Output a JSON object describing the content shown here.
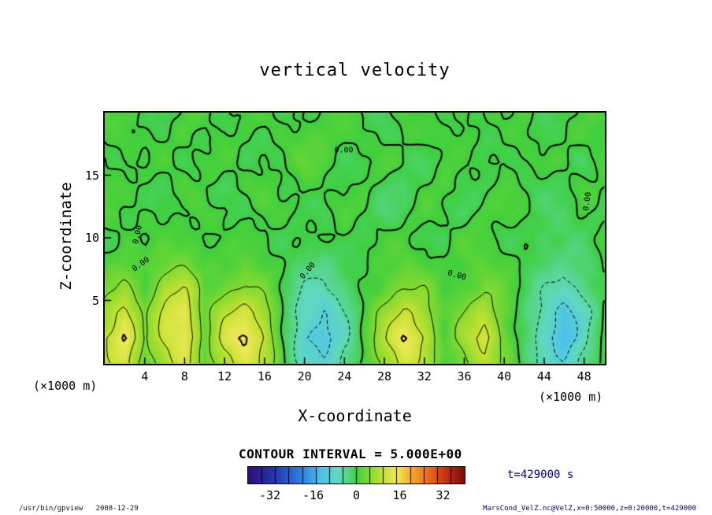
{
  "title": "vertical velocity",
  "axes": {
    "x_label": "X-coordinate",
    "z_label": "Z-coordinate",
    "x_unit_label": "(×1000 m)",
    "z_unit_label": "(×1000 m)",
    "x_ticks": [
      4,
      8,
      12,
      16,
      20,
      24,
      28,
      32,
      36,
      40,
      44,
      48
    ],
    "z_ticks": [
      5,
      10,
      15
    ],
    "x_range": [
      0,
      50
    ],
    "z_range": [
      0,
      20
    ]
  },
  "contour_note": "CONTOUR INTERVAL = 5.000E+00",
  "time_label": "t=429000 s",
  "colorbar": {
    "min": -40,
    "max": 40,
    "segment_interval": 5,
    "ticks": [
      -32,
      -16,
      0,
      16,
      32
    ]
  },
  "footer": {
    "left": "/usr/bin/gpview   2008-12-29",
    "right": "MarsCond_VelZ.nc@VelZ,x=0:50000,z=0:20000,t=429000"
  },
  "chart_data": {
    "type": "heatmap",
    "title": "vertical velocity",
    "xlabel": "X-coordinate (×1000 m)",
    "ylabel": "Z-coordinate (×1000 m)",
    "x_range": [
      0,
      50
    ],
    "z_range": [
      0,
      20
    ],
    "contour_interval": 5,
    "contour_levels": [
      -15,
      -10,
      -5,
      0,
      5,
      10,
      15
    ],
    "x": [
      0,
      2,
      4,
      6,
      8,
      10,
      12,
      14,
      16,
      18,
      20,
      22,
      24,
      26,
      28,
      30,
      32,
      34,
      36,
      38,
      40,
      42,
      44,
      46,
      48,
      50
    ],
    "z": [
      0,
      2,
      4,
      6,
      8,
      10,
      12,
      14,
      16,
      18,
      20
    ],
    "values": [
      [
        8,
        12,
        3,
        8,
        12,
        2,
        9,
        13,
        8,
        0,
        -7,
        -9,
        -5,
        1,
        7,
        12,
        8,
        1,
        5,
        9,
        3,
        -1,
        -6,
        -10,
        -4,
        1
      ],
      [
        10,
        16,
        4,
        11,
        15,
        3,
        12,
        16,
        10,
        -1,
        -10,
        -12,
        -6,
        1,
        9,
        16,
        10,
        1,
        7,
        12,
        4,
        -2,
        -8,
        -14,
        -6,
        1
      ],
      [
        7,
        12,
        3,
        12,
        14,
        3,
        9,
        12,
        8,
        -1,
        -8,
        -10,
        -5,
        1,
        6,
        11,
        8,
        1,
        5,
        9,
        3,
        -2,
        -7,
        -12,
        -7,
        0
      ],
      [
        3,
        6,
        2,
        8,
        10,
        2,
        4,
        6,
        3,
        -1,
        -5,
        -6,
        -3,
        0,
        3,
        5,
        4,
        1,
        2,
        4,
        2,
        -1,
        -4,
        -7,
        -4,
        0
      ],
      [
        1,
        2,
        1,
        3,
        4,
        1,
        1,
        2,
        1,
        0,
        -2,
        -3,
        -1,
        0,
        1,
        2,
        1,
        0,
        1,
        2,
        1,
        0,
        -2,
        -3,
        -2,
        0
      ],
      [
        0,
        1,
        -1,
        1,
        2,
        0,
        -1,
        1,
        1,
        -1,
        -1,
        0,
        1,
        -1,
        0,
        1,
        0,
        -1,
        1,
        1,
        0,
        -1,
        -2,
        -1,
        -1,
        1
      ],
      [
        1,
        -1,
        1,
        0,
        -1,
        1,
        1,
        -1,
        0,
        1,
        0,
        -1,
        1,
        0,
        -2,
        -1,
        1,
        0,
        -1,
        1,
        0,
        1,
        -1,
        -2,
        0,
        -1
      ],
      [
        0,
        1,
        0,
        -1,
        1,
        0,
        -1,
        1,
        1,
        -1,
        1,
        0,
        -1,
        1,
        -1,
        -2,
        0,
        1,
        0,
        -1,
        1,
        0,
        -1,
        -1,
        1,
        0
      ],
      [
        1,
        0,
        -1,
        1,
        0,
        1,
        0,
        -1,
        1,
        0,
        2,
        1,
        0,
        -1,
        1,
        0,
        -1,
        1,
        -1,
        0,
        1,
        -1,
        0,
        1,
        -1,
        1
      ],
      [
        0,
        1,
        0,
        0,
        1,
        -1,
        1,
        0,
        -1,
        1,
        1,
        2,
        0,
        1,
        -1,
        0,
        1,
        0,
        1,
        -1,
        0,
        1,
        -1,
        0,
        1,
        0
      ],
      [
        1,
        0,
        1,
        -1,
        0,
        1,
        0,
        1,
        0,
        -1,
        1,
        0,
        1,
        -1,
        0,
        1,
        -1,
        0,
        1,
        0,
        -1,
        1,
        0,
        -1,
        0,
        1
      ]
    ],
    "colormap_stops": [
      [
        -40,
        "#2d0f73"
      ],
      [
        -30,
        "#2338b8"
      ],
      [
        -20,
        "#2f82e0"
      ],
      [
        -13,
        "#4fc3ea"
      ],
      [
        -7,
        "#5fd9c0"
      ],
      [
        -3,
        "#55d584"
      ],
      [
        0,
        "#3ecf3e"
      ],
      [
        5,
        "#85da30"
      ],
      [
        10,
        "#c3e232"
      ],
      [
        15,
        "#efe95a"
      ],
      [
        20,
        "#f6ae2a"
      ],
      [
        28,
        "#ea5c1e"
      ],
      [
        34,
        "#c22a12"
      ],
      [
        40,
        "#7e0a0a"
      ]
    ],
    "zero_labels": [
      {
        "text": "0.00",
        "x": 3.3,
        "z": 10.3,
        "rot": -78
      },
      {
        "text": "0.00",
        "x": 3.6,
        "z": 7.9,
        "rot": -35
      },
      {
        "text": "0.00",
        "x": 20.3,
        "z": 7.4,
        "rot": -50
      },
      {
        "text": "0.00",
        "x": 23.9,
        "z": 17.0,
        "rot": 0
      },
      {
        "text": "0.00",
        "x": 35.2,
        "z": 7.0,
        "rot": 15
      },
      {
        "text": "0.00",
        "x": 48.3,
        "z": 12.9,
        "rot": -82
      }
    ]
  }
}
